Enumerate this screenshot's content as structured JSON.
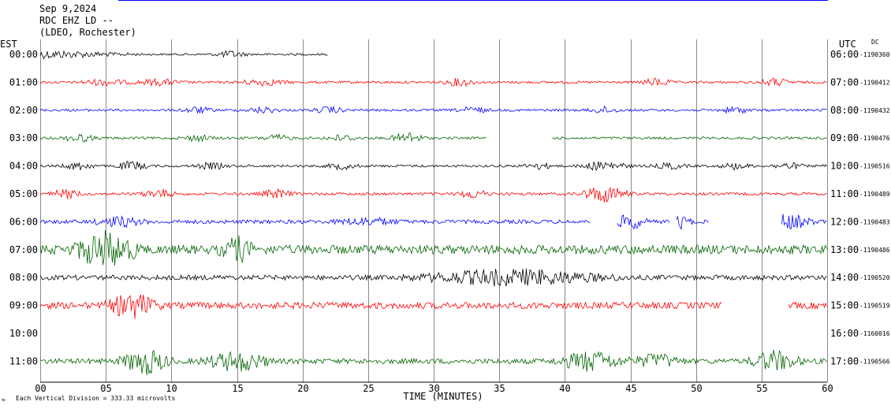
{
  "header": {
    "date": "Sep 9,2024",
    "station": "RDC EHZ LD --",
    "network": "(LDEO, Rochester)"
  },
  "left_zone": "EST",
  "right_zone": "UTC",
  "dc_label": "DC",
  "footer": {
    "scale_note": "Each Vertical Division = 333.33 microvolts",
    "corner_mark": "≈"
  },
  "colors": {
    "black": "#000000",
    "red": "#ff0000",
    "blue": "#0000ff",
    "green": "#006400",
    "grid": "#888888"
  },
  "chart_data": {
    "type": "line",
    "title": "",
    "xlabel": "TIME (MINUTES)",
    "ylabel": "",
    "xlim": [
      0,
      60
    ],
    "x_ticks": [
      "00",
      "05",
      "10",
      "15",
      "20",
      "25",
      "30",
      "35",
      "40",
      "45",
      "50",
      "55",
      "60"
    ],
    "grid": true,
    "rows": [
      {
        "est": "00:00",
        "utc": "06:00",
        "dc": "-1190360",
        "color": "black",
        "level": 0.6,
        "end": 22,
        "bursts": [
          [
            0,
            10,
            3
          ],
          [
            14.5,
            2,
            2.5
          ]
        ]
      },
      {
        "est": "01:00",
        "utc": "07:00",
        "dc": "-1190412",
        "color": "red",
        "level": 0.7,
        "end": 60,
        "bursts": [
          [
            5,
            3,
            2
          ],
          [
            9,
            3,
            2
          ],
          [
            17,
            3,
            2
          ],
          [
            32,
            2,
            2.5
          ],
          [
            47,
            2,
            2.5
          ],
          [
            56,
            2,
            2.5
          ]
        ]
      },
      {
        "est": "02:00",
        "utc": "08:00",
        "dc": "-1190432",
        "color": "blue",
        "level": 0.7,
        "end": 60,
        "bursts": [
          [
            12,
            2,
            2
          ],
          [
            17,
            2,
            2
          ],
          [
            22,
            2,
            2
          ],
          [
            33,
            2,
            2
          ],
          [
            43,
            2,
            2
          ],
          [
            53,
            2,
            2
          ]
        ]
      },
      {
        "est": "03:00",
        "utc": "09:00",
        "dc": "-1190476",
        "color": "green",
        "level": 0.7,
        "end": 60,
        "gaps": [
          [
            34,
            39
          ]
        ],
        "bursts": [
          [
            3,
            2,
            2.5
          ],
          [
            12,
            2,
            2
          ],
          [
            18,
            2,
            2
          ],
          [
            23,
            2,
            2
          ],
          [
            28,
            2,
            4
          ]
        ]
      },
      {
        "est": "04:00",
        "utc": "10:00",
        "dc": "-1190516",
        "color": "black",
        "level": 0.7,
        "end": 60,
        "bursts": [
          [
            3,
            2,
            2.5
          ],
          [
            7,
            2,
            3
          ],
          [
            13,
            2,
            2
          ],
          [
            23,
            2,
            2
          ],
          [
            38,
            2,
            2
          ],
          [
            43,
            3,
            3
          ],
          [
            48,
            2,
            2
          ],
          [
            53,
            2,
            2
          ],
          [
            57,
            2,
            2
          ]
        ]
      },
      {
        "est": "05:00",
        "utc": "11:00",
        "dc": "-1190489",
        "color": "red",
        "level": 0.8,
        "end": 60,
        "bursts": [
          [
            2,
            2,
            2.5
          ],
          [
            9,
            2,
            2.5
          ],
          [
            18,
            2,
            2.5
          ],
          [
            33,
            2,
            2.5
          ],
          [
            43,
            3,
            5
          ]
        ]
      },
      {
        "est": "06:00",
        "utc": "12:00",
        "dc": "-1190483",
        "color": "blue",
        "level": 1.1,
        "end": 60,
        "gaps": [
          [
            42,
            44
          ],
          [
            48,
            48.5
          ],
          [
            51,
            56.5
          ]
        ],
        "bursts": [
          [
            6,
            3,
            2
          ],
          [
            25,
            4,
            1.5
          ],
          [
            45,
            2,
            3
          ],
          [
            49,
            1,
            3
          ],
          [
            57,
            3,
            3
          ]
        ]
      },
      {
        "est": "07:00",
        "utc": "13:00",
        "dc": "-1190486",
        "color": "green",
        "level": 2.6,
        "end": 60,
        "bursts": [
          [
            5,
            4,
            3
          ],
          [
            15,
            2,
            2
          ]
        ]
      },
      {
        "est": "08:00",
        "utc": "14:00",
        "dc": "-1190520",
        "color": "black",
        "level": 1.4,
        "end": 60,
        "bursts": [
          [
            36,
            12,
            2.5
          ]
        ]
      },
      {
        "est": "09:00",
        "utc": "15:00",
        "dc": "-1190519",
        "color": "red",
        "level": 1.9,
        "end": 60,
        "gaps": [
          [
            52,
            57
          ]
        ],
        "bursts": [
          [
            7,
            3,
            3
          ]
        ]
      },
      {
        "est": "10:00",
        "utc": "16:00",
        "dc": "-1160016",
        "color": "black",
        "level": 0,
        "end": 0,
        "bursts": []
      },
      {
        "est": "11:00",
        "utc": "17:00",
        "dc": "-1190566",
        "color": "green",
        "level": 1.5,
        "end": 60,
        "bursts": [
          [
            8,
            3,
            4
          ],
          [
            15,
            4,
            3
          ],
          [
            42,
            4,
            3
          ],
          [
            47,
            3,
            2
          ],
          [
            56,
            3,
            3
          ]
        ]
      }
    ]
  }
}
